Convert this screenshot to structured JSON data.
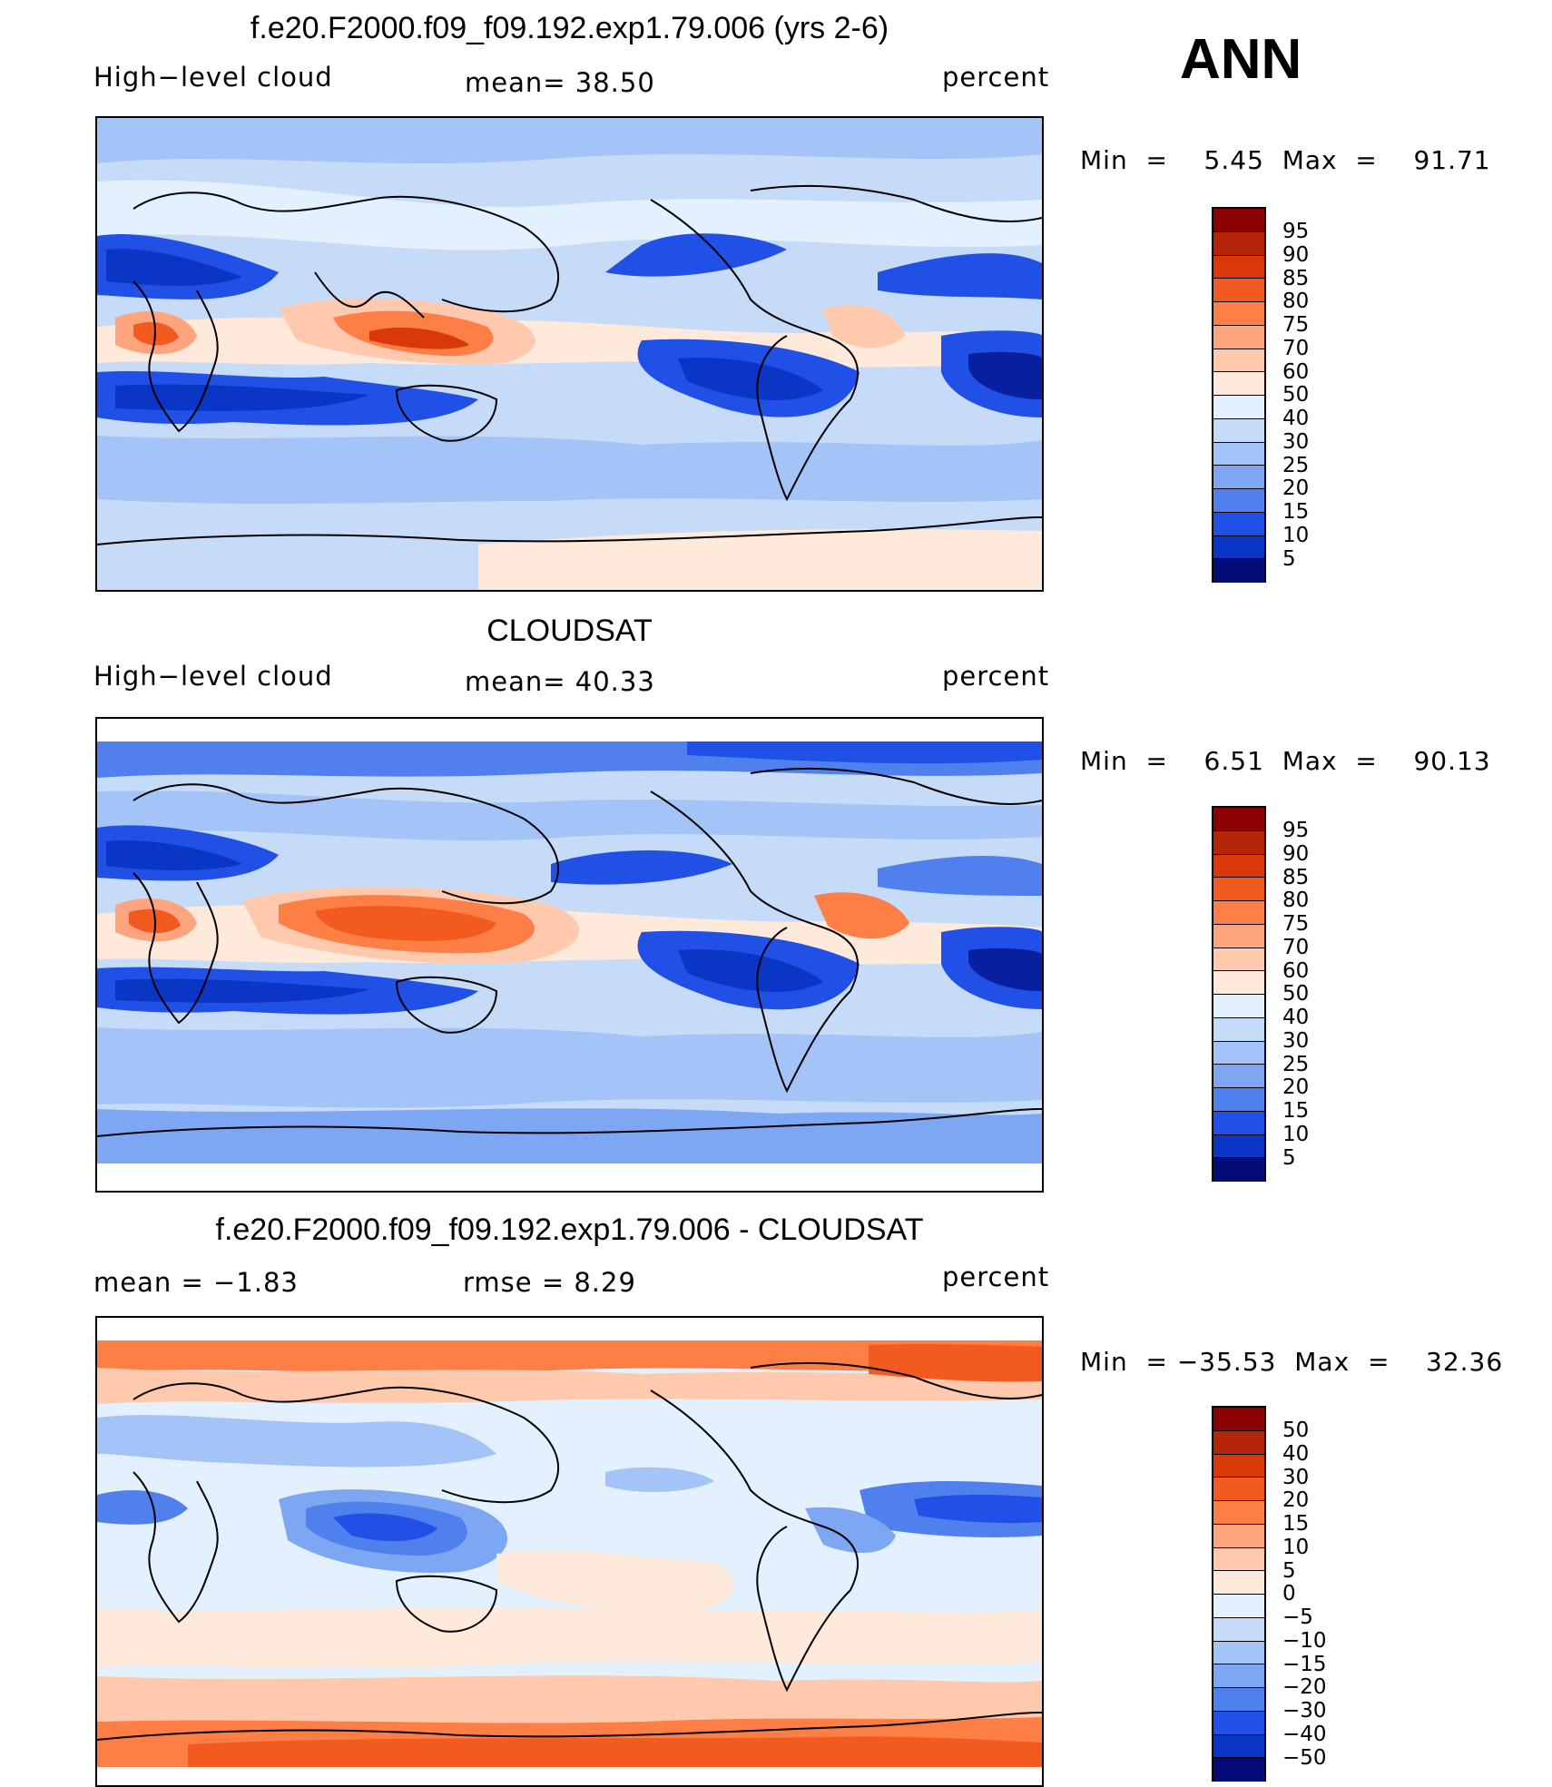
{
  "season": "ANN",
  "palette_standard": [
    "#8b0000",
    "#b5250a",
    "#d9390a",
    "#f25a20",
    "#fd7f45",
    "#fea57f",
    "#ffc9ad",
    "#ffe9da",
    "#e3f0fd",
    "#c6dbf8",
    "#a4c3f6",
    "#7da7f2",
    "#4f80ee",
    "#2050e6",
    "#0a35c5",
    "#0820a0",
    "#050c78"
  ],
  "palette_diff": [
    "#8b0000",
    "#b5250a",
    "#d9390a",
    "#f25a20",
    "#fd7f45",
    "#fea57f",
    "#ffc9ad",
    "#ffe9da",
    "#e3f0fd",
    "#c6dbf8",
    "#a4c3f6",
    "#7da7f2",
    "#4f80ee",
    "#2050e6",
    "#0a35c5",
    "#0820a0",
    "#050c78"
  ],
  "panels": [
    {
      "title": "f.e20.F2000.f09_f09.192.exp1.79.006 (yrs 2-6)",
      "left_label": "High−level cloud",
      "center_label": "mean=   38.50",
      "right_label": "percent",
      "minmax": "Min  =    5.45  Max  =    91.71",
      "colorbar_labels": [
        "95",
        "90",
        "85",
        "80",
        "75",
        "70",
        "60",
        "50",
        "40",
        "30",
        "25",
        "20",
        "15",
        "10",
        "5"
      ]
    },
    {
      "title": "CLOUDSAT",
      "left_label": "High−level cloud",
      "center_label": "mean=   40.33",
      "right_label": "percent",
      "minmax": "Min  =    6.51  Max  =    90.13",
      "colorbar_labels": [
        "95",
        "90",
        "85",
        "80",
        "75",
        "70",
        "60",
        "50",
        "40",
        "30",
        "25",
        "20",
        "15",
        "10",
        "5"
      ]
    },
    {
      "title": "f.e20.F2000.f09_f09.192.exp1.79.006 - CLOUDSAT",
      "left_label": "mean  =   −1.83",
      "center_label": "rmse  =     8.29",
      "right_label": "percent",
      "minmax": "Min  = −35.53  Max  =    32.36",
      "colorbar_labels": [
        "50",
        "40",
        "30",
        "20",
        "15",
        "10",
        "5",
        "0",
        "−5",
        "−10",
        "−15",
        "−20",
        "−30",
        "−40",
        "−50"
      ]
    }
  ]
}
